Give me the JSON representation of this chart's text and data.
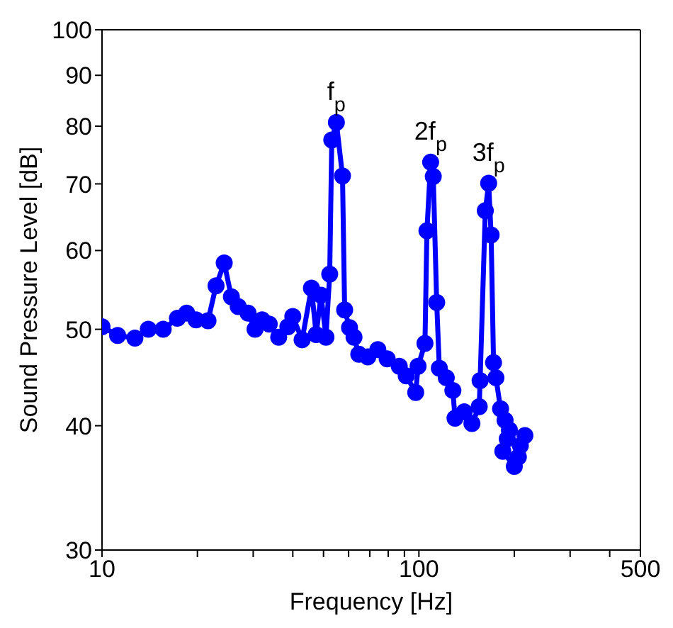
{
  "chart_data": {
    "type": "line",
    "xlabel": "Frequency [Hz]",
    "ylabel": "Sound Pressure Level [dB]",
    "log": "xy",
    "xlim": [
      10,
      500
    ],
    "ylim": [
      30,
      100
    ],
    "xticks": [
      10,
      {
        "value": 20,
        "label": null
      },
      {
        "value": 30,
        "label": null
      },
      {
        "value": 40,
        "label": null
      },
      {
        "value": 50,
        "label": null
      },
      {
        "value": 60,
        "label": null
      },
      {
        "value": 70,
        "label": null
      },
      {
        "value": 80,
        "label": null
      },
      {
        "value": 90,
        "label": null
      },
      100,
      {
        "value": 200,
        "label": null
      },
      {
        "value": 300,
        "label": null
      },
      {
        "value": 400,
        "label": null
      },
      500
    ],
    "yticks": [
      30,
      40,
      50,
      60,
      70,
      80,
      90,
      100
    ],
    "grid": false,
    "legend": false,
    "marker": "circle",
    "line_style": "solid",
    "annotations": [
      {
        "text": "f$_{p}$",
        "x": 54.9,
        "y": 80.7
      },
      {
        "text": "2f$_{p}$",
        "x": 108.9,
        "y": 73.6
      },
      {
        "text": "3f$_{p}$",
        "x": 166,
        "y": 70.1
      }
    ],
    "x": [
      10,
      11.2,
      12.7,
      14.0,
      15.6,
      17.3,
      18.5,
      19.8,
      21.6,
      22.9,
      24.3,
      25.6,
      26.9,
      28.9,
      30.4,
      32,
      33.7,
      36.1,
      38.6,
      40.0,
      42.8,
      45.8,
      47.4,
      49.1,
      50.9,
      52.3,
      53.1,
      54.9,
      57.4,
      58.3,
      60.4,
      62.4,
      64.6,
      69,
      74.2,
      79.4,
      86.7,
      91.2,
      97.7,
      99.4,
      104.5,
      106,
      108.9,
      111,
      113.8,
      116,
      122,
      128,
      130,
      139,
      147,
      155,
      156,
      162,
      166,
      169,
      172,
      175,
      181,
      187,
      193,
      190,
      184,
      200,
      206,
      209,
      216
    ],
    "series": [
      {
        "color": "#0000ff",
        "values": [
          50.3,
          49.3,
          49.0,
          50.0,
          50.0,
          51.3,
          51.9,
          51.1,
          51.0,
          55.3,
          58.3,
          53.9,
          52.7,
          51.9,
          50.0,
          51.1,
          50.6,
          49.1,
          50.3,
          51.5,
          48.8,
          55.0,
          49.4,
          54.1,
          49.1,
          56.8,
          77.5,
          80.7,
          71.3,
          52.3,
          50.2,
          49.1,
          47.2,
          46.9,
          47.7,
          46.7,
          45.9,
          44.9,
          43.2,
          45.9,
          48.4,
          62.8,
          73.6,
          71.2,
          53.2,
          45.7,
          44.7,
          43.4,
          40.7,
          41.3,
          40.2,
          41.8,
          44.4,
          65.8,
          70.1,
          62.2,
          46.3,
          44.7,
          41.6,
          40.5,
          39.6,
          38.8,
          37.7,
          36.4,
          37.2,
          38.2,
          39.1
        ]
      }
    ]
  }
}
